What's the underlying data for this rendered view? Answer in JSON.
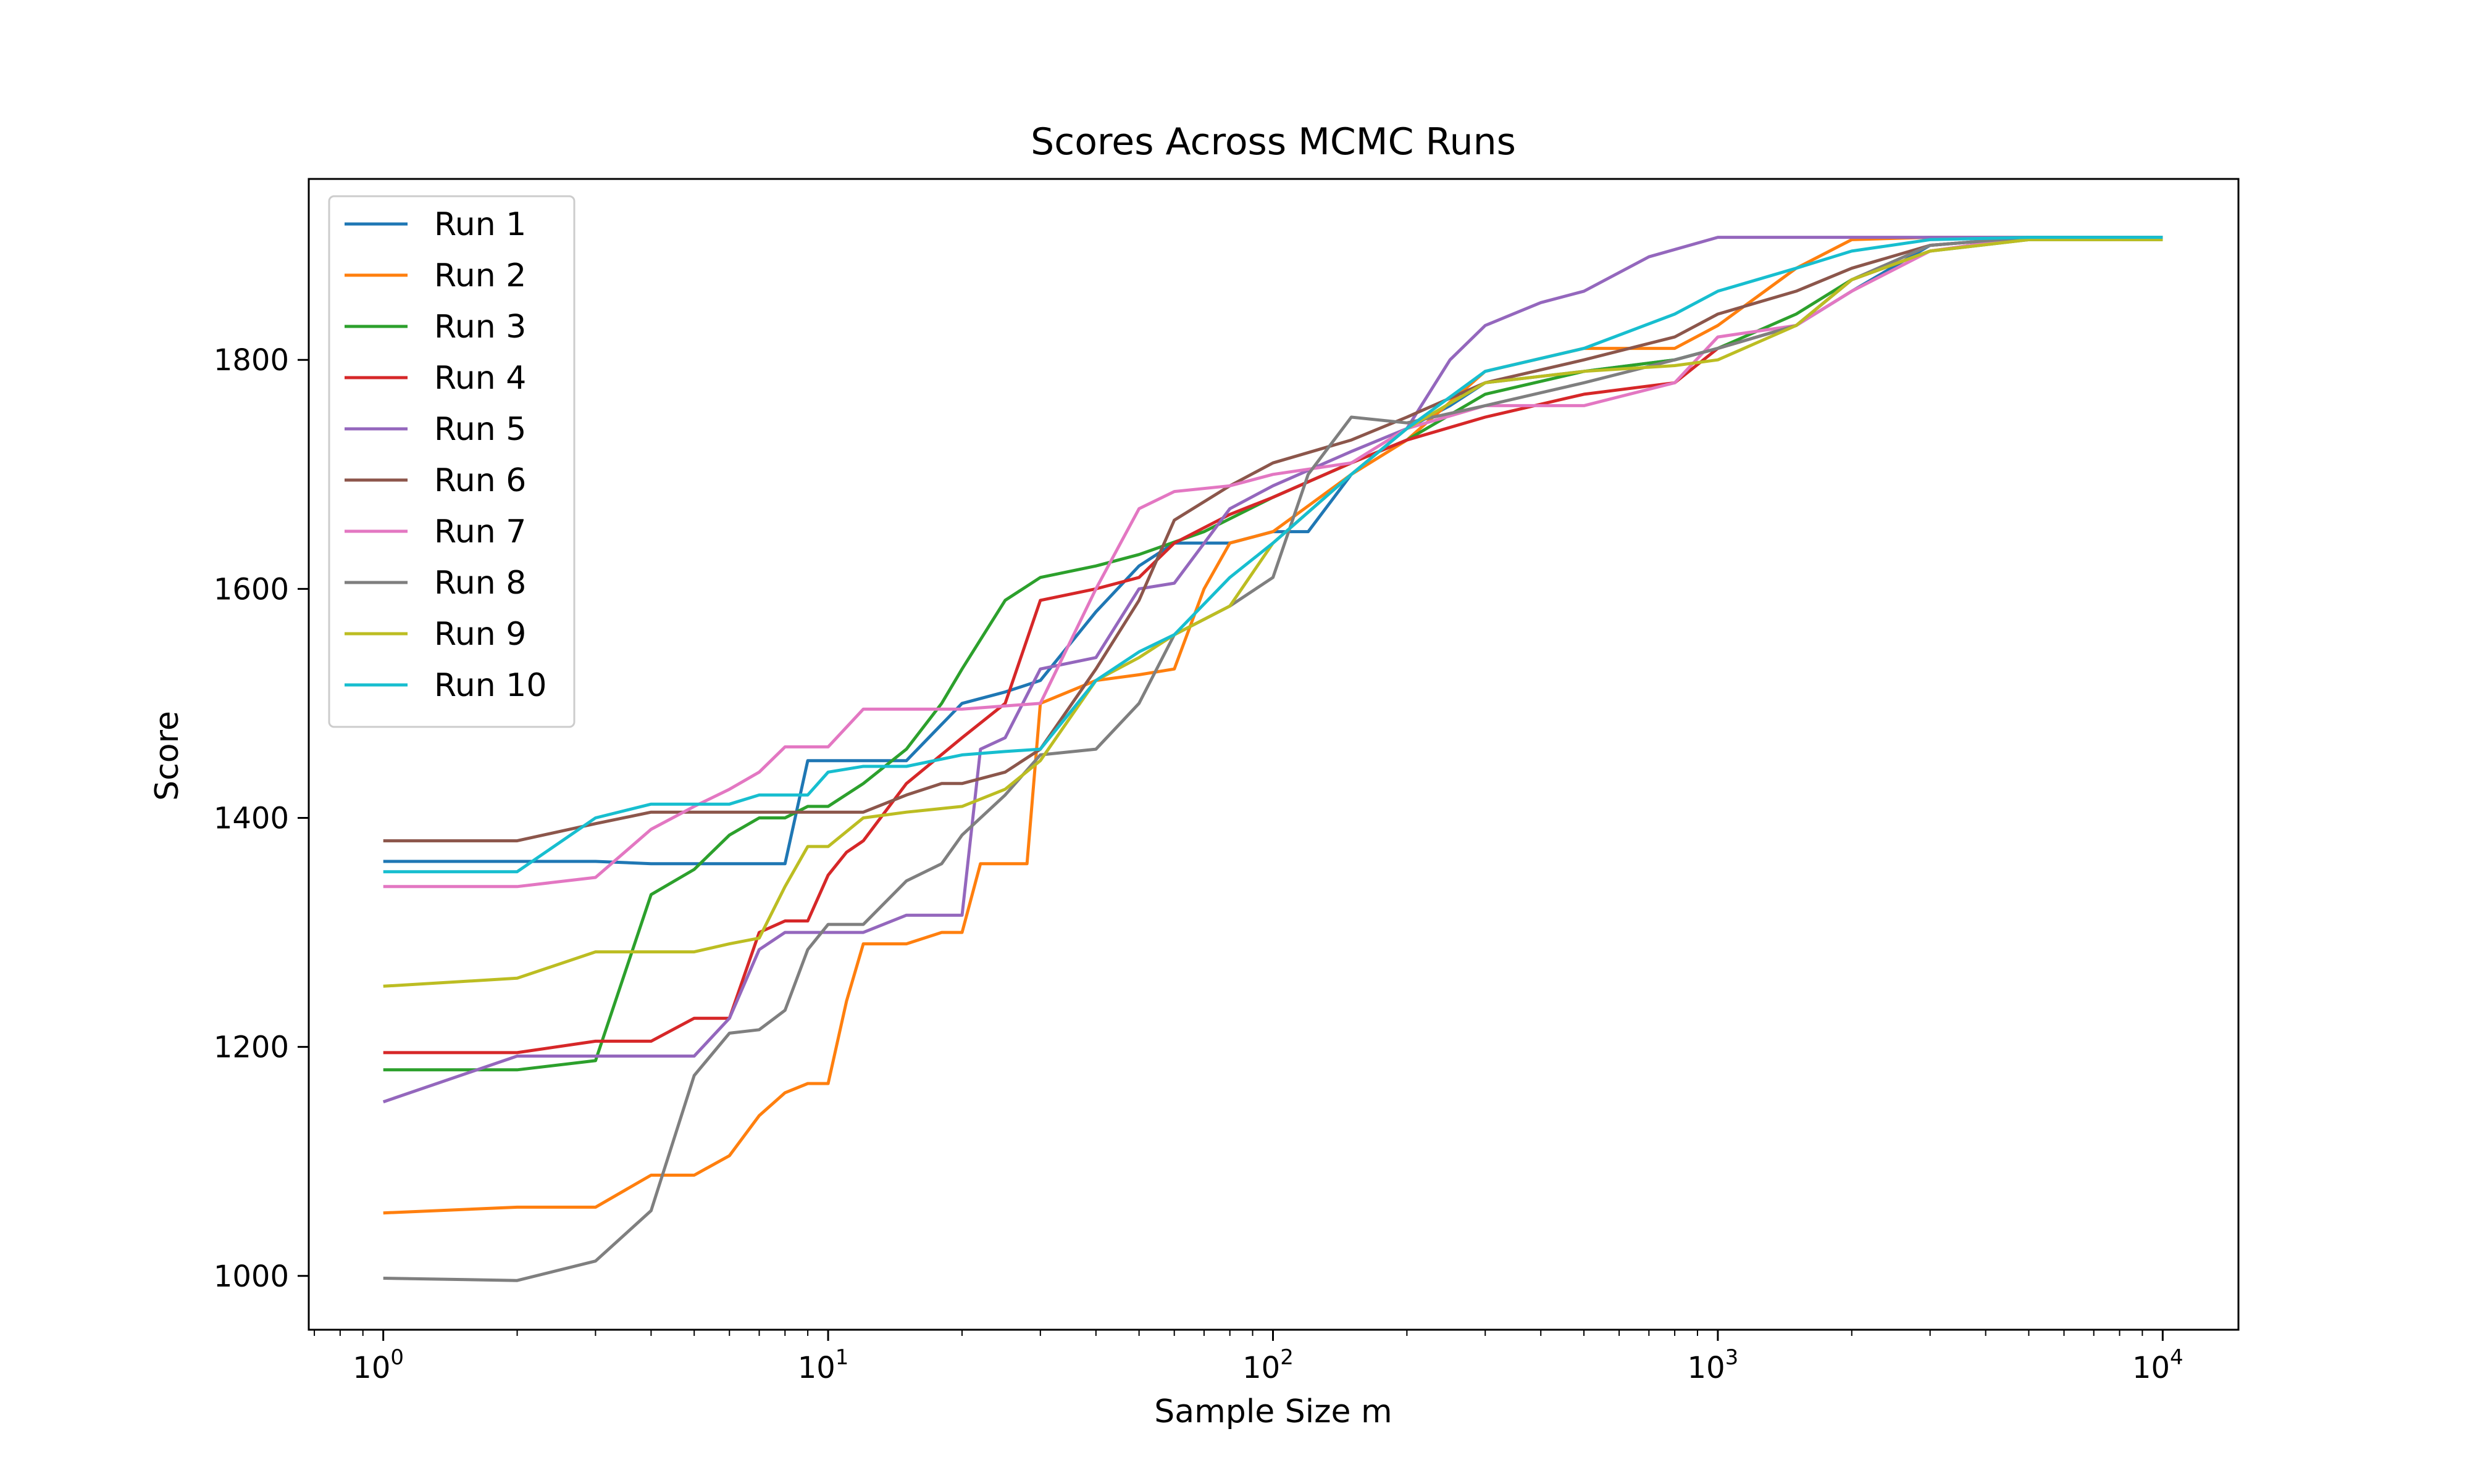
{
  "chart_data": {
    "type": "line",
    "title": "Scores Across MCMC Runs",
    "xlabel": "Sample Size m",
    "ylabel": "Score",
    "xscale": "log",
    "xlim": [
      0.68,
      14800
    ],
    "ylim": [
      953,
      1958
    ],
    "x_ticks": [
      {
        "base": "10",
        "exp": "0",
        "value": 1
      },
      {
        "base": "10",
        "exp": "1",
        "value": 10
      },
      {
        "base": "10",
        "exp": "2",
        "value": 100
      },
      {
        "base": "10",
        "exp": "3",
        "value": 1000
      },
      {
        "base": "10",
        "exp": "4",
        "value": 10000
      }
    ],
    "y_ticks": [
      {
        "label": "1000",
        "value": 1000
      },
      {
        "label": "1200",
        "value": 1200
      },
      {
        "label": "1400",
        "value": 1400
      },
      {
        "label": "1600",
        "value": 1600
      },
      {
        "label": "1800",
        "value": 1800
      }
    ],
    "grid": false,
    "legend_position": "top-left",
    "series": [
      {
        "name": "Run 1",
        "color": "#1f77b4",
        "x": [
          1,
          2,
          3,
          4,
          5,
          6,
          7,
          8,
          9,
          10,
          15,
          20,
          25,
          30,
          40,
          50,
          60,
          80,
          100,
          120,
          150,
          200,
          250,
          300,
          500,
          800,
          1000,
          1500,
          2000,
          3000,
          5000,
          10000
        ],
        "y": [
          1362,
          1362,
          1362,
          1360,
          1360,
          1360,
          1360,
          1360,
          1450,
          1450,
          1450,
          1500,
          1510,
          1520,
          1580,
          1620,
          1640,
          1640,
          1650,
          1650,
          1700,
          1740,
          1760,
          1780,
          1790,
          1800,
          1810,
          1830,
          1860,
          1900,
          1907,
          1907
        ]
      },
      {
        "name": "Run 2",
        "color": "#ff7f0e",
        "x": [
          1,
          2,
          3,
          4,
          5,
          6,
          7,
          8,
          9,
          10,
          11,
          12,
          15,
          18,
          20,
          22,
          25,
          28,
          30,
          40,
          50,
          60,
          70,
          80,
          100,
          150,
          200,
          300,
          500,
          800,
          1000,
          1500,
          2000,
          3000,
          5000,
          10000
        ],
        "y": [
          1055,
          1060,
          1060,
          1088,
          1088,
          1105,
          1140,
          1160,
          1168,
          1168,
          1240,
          1290,
          1290,
          1300,
          1300,
          1360,
          1360,
          1360,
          1500,
          1520,
          1525,
          1530,
          1600,
          1640,
          1650,
          1700,
          1730,
          1790,
          1810,
          1810,
          1830,
          1880,
          1905,
          1907,
          1907,
          1907
        ]
      },
      {
        "name": "Run 3",
        "color": "#2ca02c",
        "x": [
          1,
          2,
          3,
          4,
          5,
          6,
          7,
          8,
          9,
          10,
          12,
          15,
          18,
          20,
          25,
          30,
          40,
          50,
          70,
          100,
          150,
          200,
          300,
          500,
          800,
          1000,
          1500,
          2000,
          3000,
          5000,
          10000
        ],
        "y": [
          1180,
          1180,
          1188,
          1333,
          1355,
          1385,
          1400,
          1400,
          1410,
          1410,
          1430,
          1460,
          1500,
          1530,
          1590,
          1610,
          1620,
          1630,
          1650,
          1680,
          1710,
          1730,
          1770,
          1790,
          1800,
          1810,
          1840,
          1870,
          1895,
          1905,
          1905
        ]
      },
      {
        "name": "Run 4",
        "color": "#d62728",
        "x": [
          1,
          2,
          3,
          4,
          5,
          6,
          7,
          8,
          9,
          10,
          11,
          12,
          15,
          20,
          25,
          30,
          40,
          50,
          60,
          80,
          100,
          150,
          200,
          300,
          500,
          800,
          1000,
          1500,
          2000,
          3000,
          5000,
          10000
        ],
        "y": [
          1195,
          1195,
          1205,
          1205,
          1225,
          1225,
          1300,
          1310,
          1310,
          1350,
          1370,
          1380,
          1430,
          1470,
          1500,
          1590,
          1600,
          1610,
          1640,
          1665,
          1680,
          1710,
          1730,
          1750,
          1770,
          1780,
          1810,
          1830,
          1870,
          1895,
          1907,
          1907
        ]
      },
      {
        "name": "Run 5",
        "color": "#9467bd",
        "x": [
          1,
          2,
          3,
          4,
          5,
          6,
          7,
          8,
          10,
          12,
          15,
          20,
          22,
          25,
          30,
          40,
          50,
          60,
          80,
          100,
          150,
          200,
          250,
          300,
          400,
          500,
          700,
          1000,
          1500,
          2000,
          3000,
          5000,
          10000
        ],
        "y": [
          1152,
          1192,
          1192,
          1192,
          1192,
          1225,
          1285,
          1300,
          1300,
          1300,
          1315,
          1315,
          1460,
          1470,
          1530,
          1540,
          1600,
          1605,
          1670,
          1690,
          1720,
          1740,
          1800,
          1830,
          1850,
          1860,
          1890,
          1907,
          1907,
          1907,
          1907,
          1907,
          1907
        ]
      },
      {
        "name": "Run 6",
        "color": "#8c564b",
        "x": [
          1,
          2,
          3,
          4,
          5,
          6,
          8,
          10,
          12,
          15,
          18,
          20,
          25,
          30,
          40,
          50,
          60,
          80,
          100,
          150,
          200,
          300,
          500,
          800,
          1000,
          1500,
          2000,
          3000,
          5000,
          10000
        ],
        "y": [
          1380,
          1380,
          1395,
          1405,
          1405,
          1405,
          1405,
          1405,
          1405,
          1420,
          1430,
          1430,
          1440,
          1460,
          1530,
          1590,
          1660,
          1690,
          1710,
          1730,
          1750,
          1780,
          1800,
          1820,
          1840,
          1860,
          1880,
          1900,
          1907,
          1907
        ]
      },
      {
        "name": "Run 7",
        "color": "#e377c2",
        "x": [
          1,
          2,
          3,
          4,
          5,
          6,
          7,
          8,
          10,
          12,
          15,
          20,
          30,
          40,
          50,
          60,
          80,
          100,
          150,
          200,
          300,
          500,
          800,
          1000,
          1500,
          2000,
          3000,
          5000,
          8000,
          10000
        ],
        "y": [
          1340,
          1340,
          1348,
          1390,
          1410,
          1425,
          1440,
          1462,
          1462,
          1495,
          1495,
          1495,
          1500,
          1600,
          1670,
          1685,
          1690,
          1700,
          1710,
          1740,
          1760,
          1760,
          1780,
          1820,
          1830,
          1860,
          1895,
          1907,
          1905,
          1907
        ]
      },
      {
        "name": "Run 8",
        "color": "#7f7f7f",
        "x": [
          1,
          2,
          3,
          4,
          5,
          6,
          7,
          8,
          9,
          10,
          12,
          15,
          18,
          20,
          25,
          30,
          40,
          50,
          60,
          80,
          100,
          120,
          150,
          200,
          300,
          500,
          800,
          1000,
          1500,
          2000,
          3000,
          5000,
          10000
        ],
        "y": [
          998,
          996,
          1013,
          1057,
          1175,
          1212,
          1215,
          1232,
          1285,
          1307,
          1307,
          1345,
          1360,
          1385,
          1420,
          1455,
          1460,
          1500,
          1560,
          1585,
          1610,
          1700,
          1750,
          1745,
          1760,
          1780,
          1800,
          1810,
          1830,
          1870,
          1900,
          1907,
          1907
        ]
      },
      {
        "name": "Run 9",
        "color": "#bcbd22",
        "x": [
          1,
          2,
          3,
          4,
          5,
          6,
          7,
          8,
          9,
          10,
          12,
          15,
          20,
          25,
          30,
          40,
          50,
          60,
          80,
          100,
          150,
          200,
          300,
          500,
          800,
          1000,
          1500,
          2000,
          3000,
          5000,
          10000
        ],
        "y": [
          1253,
          1260,
          1283,
          1283,
          1283,
          1290,
          1295,
          1340,
          1375,
          1375,
          1400,
          1405,
          1410,
          1425,
          1450,
          1520,
          1540,
          1560,
          1585,
          1640,
          1700,
          1740,
          1780,
          1790,
          1795,
          1800,
          1830,
          1870,
          1895,
          1905,
          1905
        ]
      },
      {
        "name": "Run 10",
        "color": "#17becf",
        "x": [
          1,
          2,
          3,
          4,
          5,
          6,
          7,
          8,
          9,
          10,
          12,
          15,
          20,
          25,
          30,
          40,
          50,
          60,
          80,
          100,
          150,
          200,
          300,
          500,
          800,
          1000,
          1500,
          2000,
          3000,
          5000,
          10000
        ],
        "y": [
          1353,
          1353,
          1400,
          1412,
          1412,
          1412,
          1420,
          1420,
          1420,
          1440,
          1445,
          1445,
          1455,
          1458,
          1460,
          1520,
          1545,
          1560,
          1610,
          1640,
          1700,
          1740,
          1790,
          1810,
          1840,
          1860,
          1880,
          1895,
          1905,
          1907,
          1907
        ]
      }
    ]
  }
}
